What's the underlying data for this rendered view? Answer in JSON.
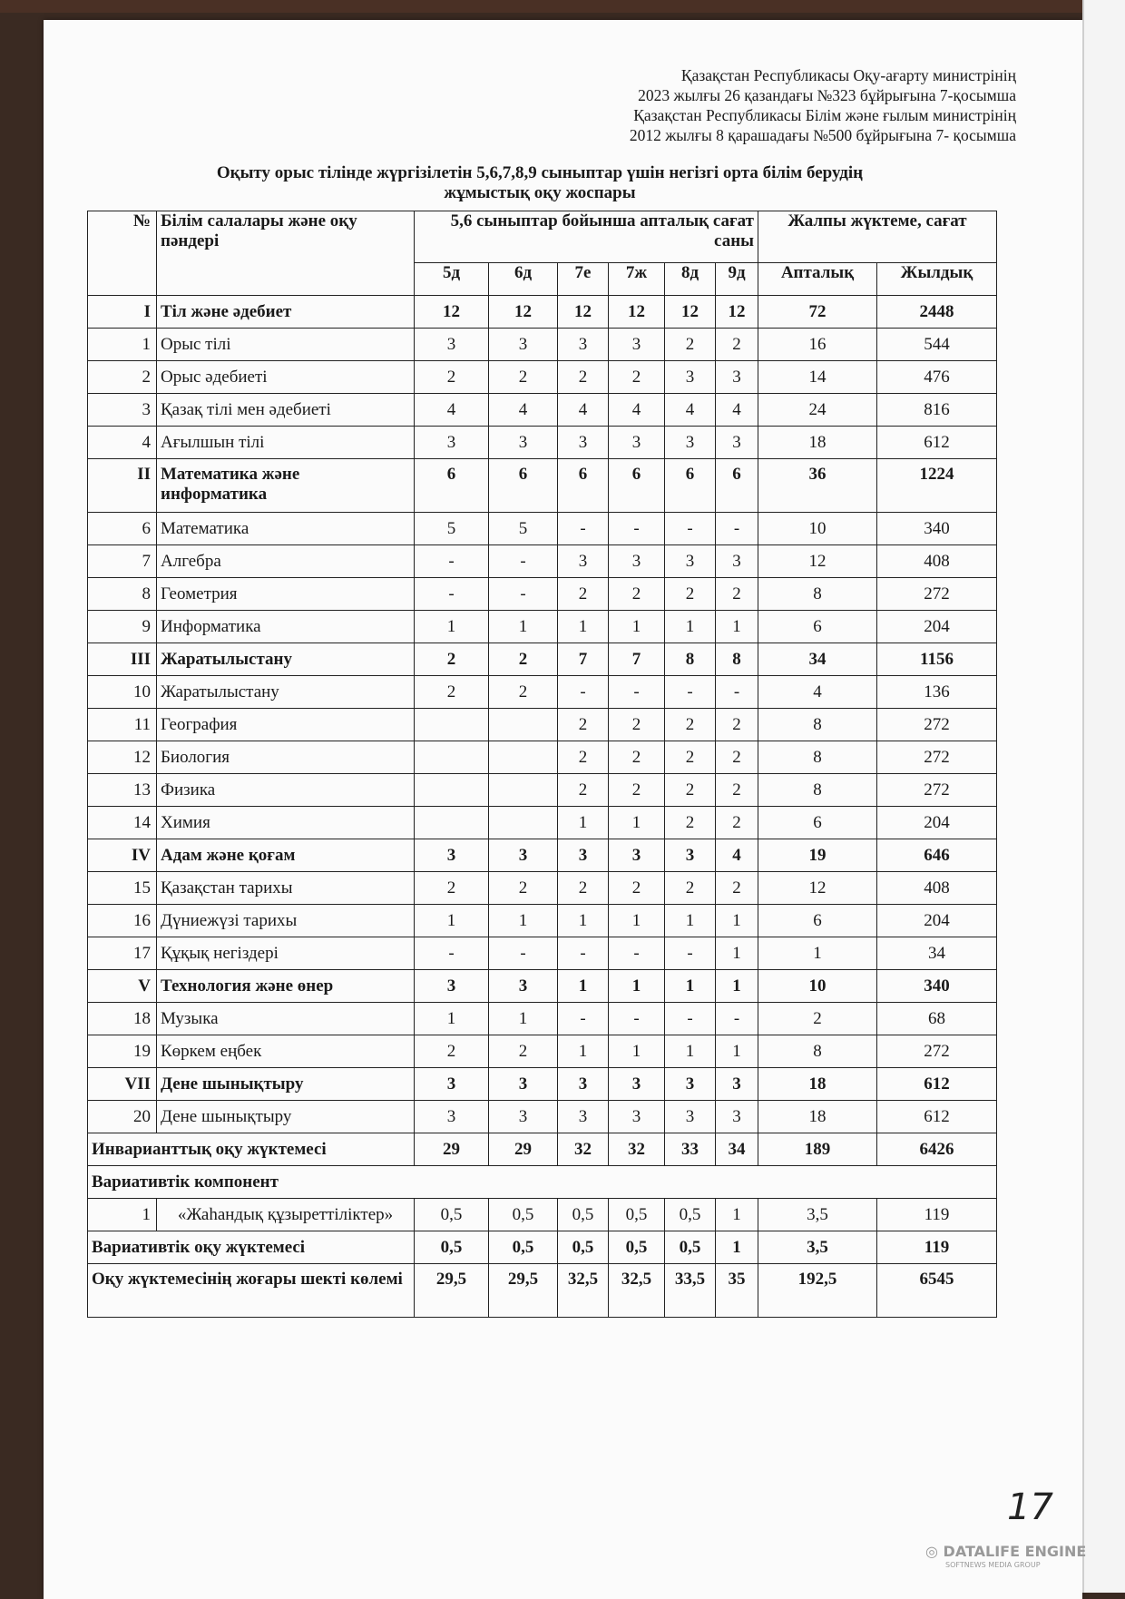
{
  "header_lines": [
    "Қазақстан Республикасы Оқу-ағарту министрінің",
    "2023 жылғы 26 қазандағы  №323 бұйрығына 7-қосымша",
    "Қазақстан Республикасы Білім және ғылым  министрінің",
    "2012 жылғы 8 қарашадағы №500 бұйрығына 7- қосымша"
  ],
  "title_line1": "Оқыту орыс тілінде жүргізілетін 5,6,7,8,9 сыныптар үшін негізгі орта білім берудің",
  "title_line2": "жұмыстық оқу жоспары",
  "table": {
    "col_num": "№",
    "col_subject": "Білім салалары және оқу пәндері",
    "col_weekly_group": "5,6 сыныптар бойынша  апталық сағат саны",
    "col_total_group": "Жалпы жүктеме, сағат",
    "classes": [
      "5д",
      "6д",
      "7е",
      "7ж",
      "8д",
      "9д"
    ],
    "col_week": "Апталық",
    "col_year": "Жылдық",
    "rows": [
      {
        "num": "I",
        "name": "Тіл және әдебиет",
        "v": [
          "12",
          "12",
          "12",
          "12",
          "12",
          "12"
        ],
        "week": "72",
        "year": "2448",
        "section": true
      },
      {
        "num": "1",
        "name": "Орыс тілі",
        "v": [
          "3",
          "3",
          "3",
          "3",
          "2",
          "2"
        ],
        "week": "16",
        "year": "544"
      },
      {
        "num": "2",
        "name": "Орыс әдебиеті",
        "v": [
          "2",
          "2",
          "2",
          "2",
          "3",
          "3"
        ],
        "week": "14",
        "year": "476"
      },
      {
        "num": "3",
        "name": "Қазақ тілі мен әдебиеті",
        "v": [
          "4",
          "4",
          "4",
          "4",
          "4",
          "4"
        ],
        "week": "24",
        "year": "816"
      },
      {
        "num": "4",
        "name": "Ағылшын тілі",
        "v": [
          "3",
          "3",
          "3",
          "3",
          "3",
          "3"
        ],
        "week": "18",
        "year": "612"
      },
      {
        "num": "II",
        "name": "Математика және информатика",
        "v": [
          "6",
          "6",
          "6",
          "6",
          "6",
          "6"
        ],
        "week": "36",
        "year": "1224",
        "section": true,
        "tall": true
      },
      {
        "num": "6",
        "name": "Математика",
        "v": [
          "5",
          "5",
          "-",
          "-",
          "-",
          "-"
        ],
        "week": "10",
        "year": "340"
      },
      {
        "num": "7",
        "name": "Алгебра",
        "v": [
          "-",
          "-",
          "3",
          "3",
          "3",
          "3"
        ],
        "week": "12",
        "year": "408"
      },
      {
        "num": "8",
        "name": "Геометрия",
        "v": [
          "-",
          "-",
          "2",
          "2",
          "2",
          "2"
        ],
        "week": "8",
        "year": "272"
      },
      {
        "num": "9",
        "name": "Информатика",
        "v": [
          "1",
          "1",
          "1",
          "1",
          "1",
          "1"
        ],
        "week": "6",
        "year": "204"
      },
      {
        "num": "III",
        "name": "Жаратылыстану",
        "v": [
          "2",
          "2",
          "7",
          "7",
          "8",
          "8"
        ],
        "week": "34",
        "year": "1156",
        "section": true
      },
      {
        "num": "10",
        "name": "Жаратылыстану",
        "v": [
          "2",
          "2",
          "-",
          "-",
          "-",
          "-"
        ],
        "week": "4",
        "year": "136"
      },
      {
        "num": "11",
        "name": "География",
        "v": [
          "",
          "",
          "2",
          "2",
          "2",
          "2"
        ],
        "week": "8",
        "year": "272"
      },
      {
        "num": "12",
        "name": "Биология",
        "v": [
          "",
          "",
          "2",
          "2",
          "2",
          "2"
        ],
        "week": "8",
        "year": "272"
      },
      {
        "num": "13",
        "name": "Физика",
        "v": [
          "",
          "",
          "2",
          "2",
          "2",
          "2"
        ],
        "week": "8",
        "year": "272"
      },
      {
        "num": "14",
        "name": "Химия",
        "v": [
          "",
          "",
          "1",
          "1",
          "2",
          "2"
        ],
        "week": "6",
        "year": "204"
      },
      {
        "num": "IV",
        "name": "Адам және қоғам",
        "v": [
          "3",
          "3",
          "3",
          "3",
          "3",
          "4"
        ],
        "week": "19",
        "year": "646",
        "section": true
      },
      {
        "num": "15",
        "name": "Қазақстан тарихы",
        "v": [
          "2",
          "2",
          "2",
          "2",
          "2",
          "2"
        ],
        "week": "12",
        "year": "408"
      },
      {
        "num": "16",
        "name": "Дүниежүзі тарихы",
        "v": [
          "1",
          "1",
          "1",
          "1",
          "1",
          "1"
        ],
        "week": "6",
        "year": "204"
      },
      {
        "num": "17",
        "name": "Құқық негіздері",
        "v": [
          "-",
          "-",
          "-",
          "-",
          "-",
          "1"
        ],
        "week": "1",
        "year": "34"
      },
      {
        "num": "V",
        "name": "Технология және өнер",
        "v": [
          "3",
          "3",
          "1",
          "1",
          "1",
          "1"
        ],
        "week": "10",
        "year": "340",
        "section": true
      },
      {
        "num": "18",
        "name": "Музыка",
        "v": [
          "1",
          "1",
          "-",
          "-",
          "-",
          "-"
        ],
        "week": "2",
        "year": "68"
      },
      {
        "num": "19",
        "name": "Көркем еңбек",
        "v": [
          "2",
          "2",
          "1",
          "1",
          "1",
          "1"
        ],
        "week": "8",
        "year": "272"
      },
      {
        "num": "VII",
        "name": "Дене шынықтыру",
        "v": [
          "3",
          "3",
          "3",
          "3",
          "3",
          "3"
        ],
        "week": "18",
        "year": "612",
        "section": true
      },
      {
        "num": "20",
        "name": "Дене шынықтыру",
        "v": [
          "3",
          "3",
          "3",
          "3",
          "3",
          "3"
        ],
        "week": "18",
        "year": "612"
      }
    ],
    "invariant": {
      "label": "Инварианттық оқу жүктемесі",
      "v": [
        "29",
        "29",
        "32",
        "32",
        "33",
        "34"
      ],
      "week": "189",
      "year": "6426"
    },
    "variative_component": "Вариативтік компонент",
    "variative_row": {
      "num": "1",
      "name": "«Жаһандық құзыреттіліктер»",
      "v": [
        "0,5",
        "0,5",
        "0,5",
        "0,5",
        "0,5",
        "1"
      ],
      "week": "3,5",
      "year": "119"
    },
    "variative_load": {
      "label": "Вариативтік оқу жүктемесі",
      "v": [
        "0,5",
        "0,5",
        "0,5",
        "0,5",
        "0,5",
        "1"
      ],
      "week": "3,5",
      "year": "119"
    },
    "max_load": {
      "label": "Оқу жүктемесінің жоғары шекті көлемі",
      "v": [
        "29,5",
        "29,5",
        "32,5",
        "32,5",
        "33,5",
        "35"
      ],
      "week": "192,5",
      "year": "6545"
    }
  },
  "page_number": "17",
  "watermark": {
    "name": "DATALIFE ENGINE",
    "sub": "SOFTNEWS MEDIA GROUP"
  }
}
